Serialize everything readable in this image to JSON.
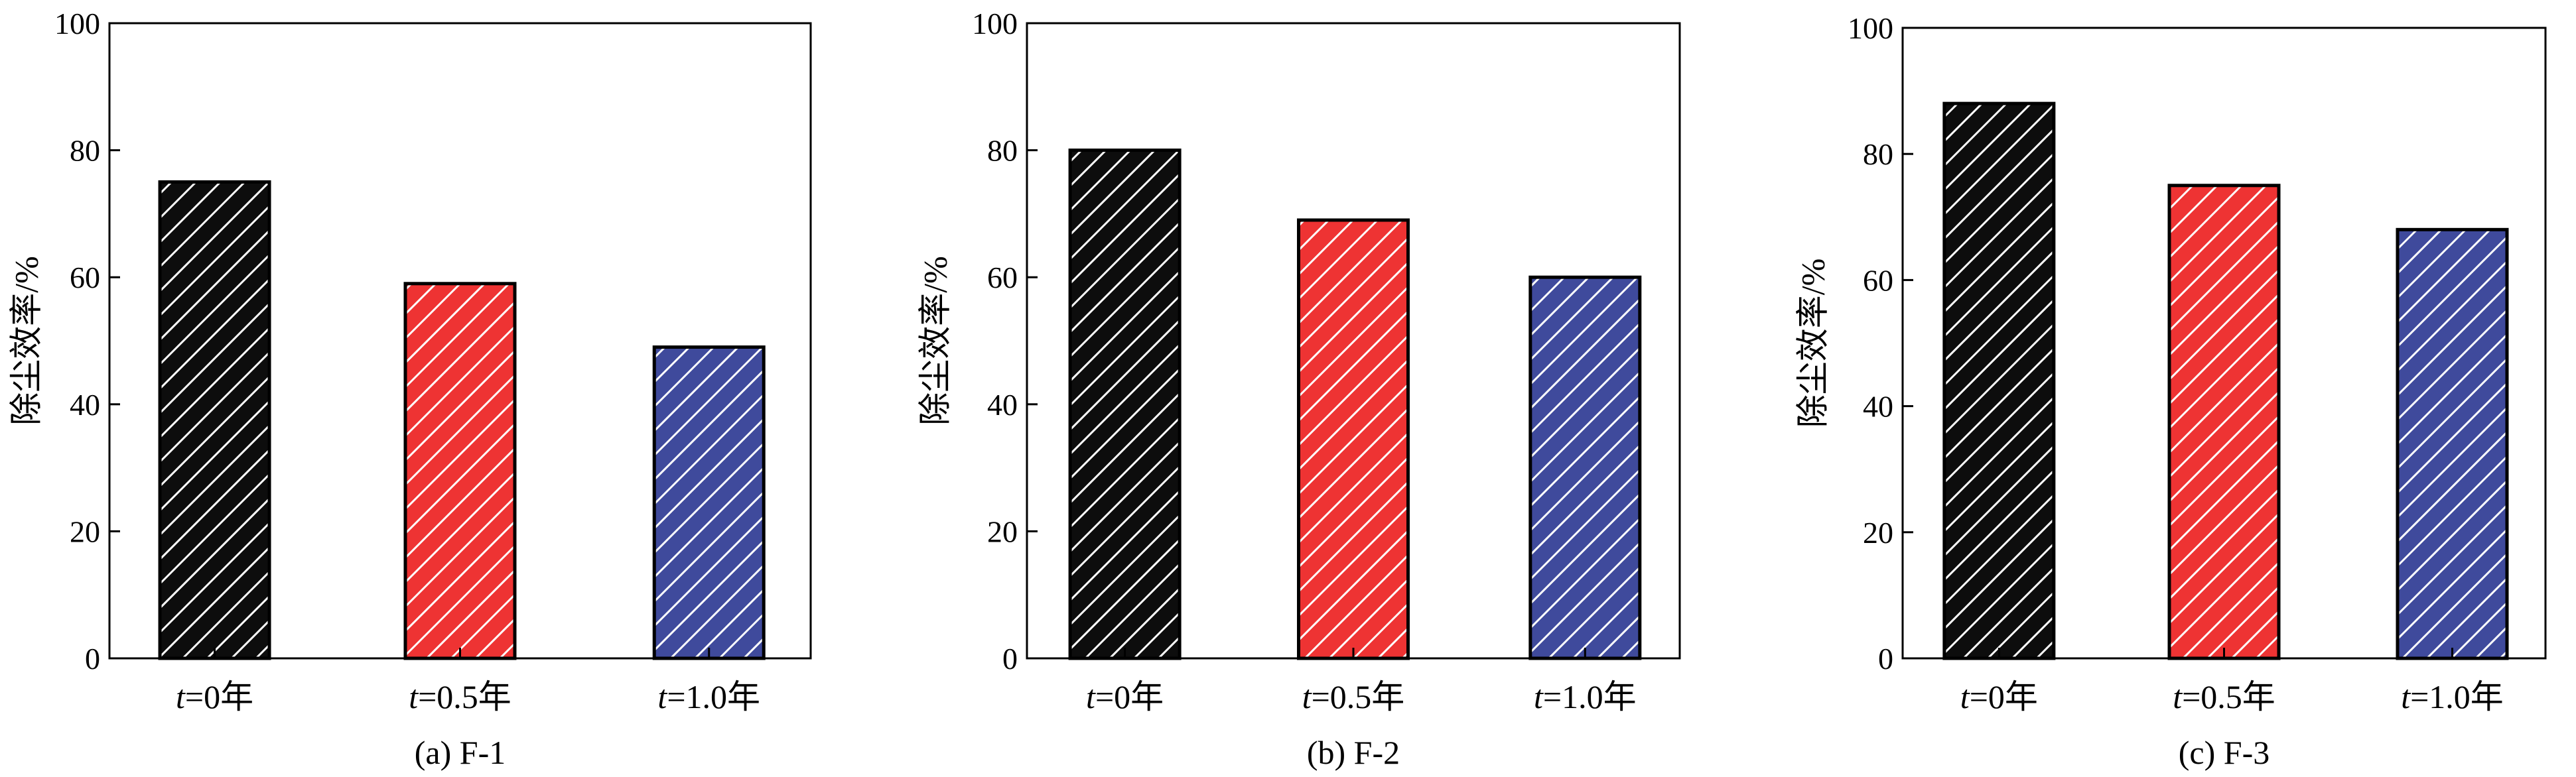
{
  "colors": {
    "t0": "#0d0d0d",
    "t05": "#ee3333",
    "t10": "#3f4a9c",
    "hatch": "#ffffff"
  },
  "chart_data": [
    {
      "type": "bar",
      "caption": "(a) F-1",
      "ylabel": "除尘效率/%",
      "ylim": [
        0,
        100
      ],
      "yticks": [
        0,
        20,
        40,
        60,
        80,
        100
      ],
      "categories": [
        {
          "var": "t",
          "rest": "=0年"
        },
        {
          "var": "t",
          "rest": "=0.5年"
        },
        {
          "var": "t",
          "rest": "=1.0年"
        }
      ],
      "values": [
        75,
        59,
        49
      ],
      "bar_colors": [
        "t0",
        "t05",
        "t10"
      ]
    },
    {
      "type": "bar",
      "caption": "(b) F-2",
      "ylabel": "除尘效率/%",
      "ylim": [
        0,
        100
      ],
      "yticks": [
        0,
        20,
        40,
        60,
        80,
        100
      ],
      "categories": [
        {
          "var": "t",
          "rest": "=0年"
        },
        {
          "var": "t",
          "rest": "=0.5年"
        },
        {
          "var": "t",
          "rest": "=1.0年"
        }
      ],
      "values": [
        80,
        69,
        60
      ],
      "bar_colors": [
        "t0",
        "t05",
        "t10"
      ]
    },
    {
      "type": "bar",
      "caption": "(c) F-3",
      "ylabel": "除尘效率/%",
      "ylim": [
        0,
        100
      ],
      "yticks": [
        0,
        20,
        40,
        60,
        80,
        100
      ],
      "categories": [
        {
          "var": "t",
          "rest": "=0年"
        },
        {
          "var": "t",
          "rest": "=0.5年"
        },
        {
          "var": "t",
          "rest": "=1.0年"
        }
      ],
      "values": [
        88,
        75,
        68
      ],
      "bar_colors": [
        "t0",
        "t05",
        "t10"
      ]
    }
  ]
}
